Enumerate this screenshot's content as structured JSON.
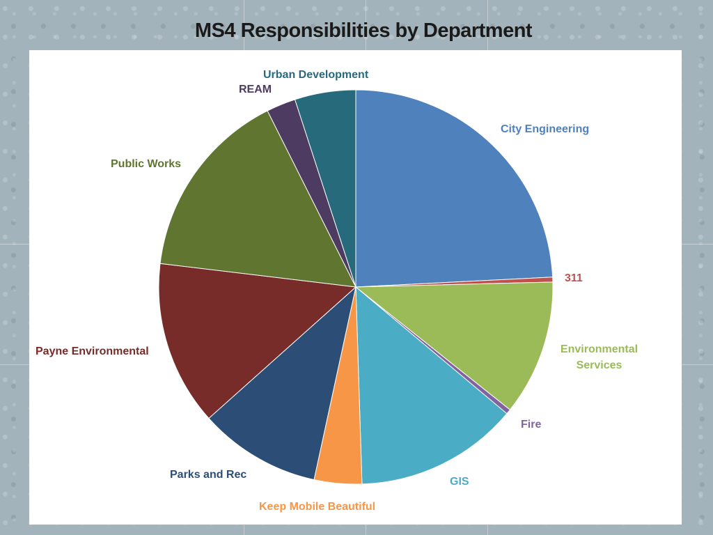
{
  "chart_data": {
    "type": "pie",
    "title": "MS4 Responsibilities by Department",
    "start": "12 o'clock, clockwise",
    "slices": [
      {
        "label": "City Engineering",
        "value": 24.2,
        "color": "#4F81BD"
      },
      {
        "label": "311",
        "value": 0.4,
        "color": "#C0504D"
      },
      {
        "label": "Environmental Services",
        "value": 11.1,
        "color": "#9BBB59"
      },
      {
        "label": "Fire",
        "value": 0.4,
        "color": "#8064A2"
      },
      {
        "label": "GIS",
        "value": 13.4,
        "color": "#4BACC6"
      },
      {
        "label": "Keep Mobile Beautiful",
        "value": 3.9,
        "color": "#F79646"
      },
      {
        "label": "Parks and Rec",
        "value": 10.0,
        "color": "#2C4D75"
      },
      {
        "label": "Payne Environmental",
        "value": 13.5,
        "color": "#772C2A"
      },
      {
        "label": "Public Works",
        "value": 15.7,
        "color": "#5F7530"
      },
      {
        "label": "REAM",
        "value": 2.4,
        "color": "#4D3B62"
      },
      {
        "label": "Urban Development",
        "value": 5.0,
        "color": "#276A7C"
      }
    ],
    "legend": "none (data labels outside slices)"
  }
}
